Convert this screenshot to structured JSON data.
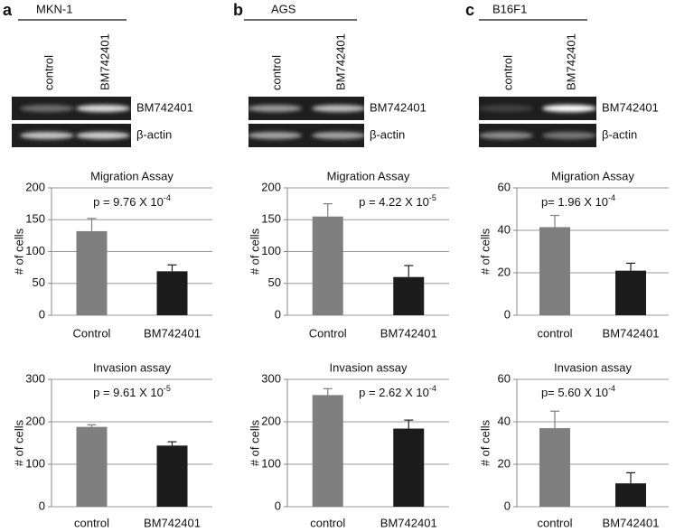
{
  "panels": [
    {
      "letter": "a",
      "cell_line": "MKN-1",
      "lanes": [
        "control",
        "BM742401"
      ],
      "bands": [
        "BM742401",
        "β-actin"
      ]
    },
    {
      "letter": "b",
      "cell_line": "AGS",
      "lanes": [
        "control",
        "BM742401"
      ],
      "bands": [
        "BM742401",
        "β-actin"
      ]
    },
    {
      "letter": "c",
      "cell_line": "B16F1",
      "lanes": [
        "control",
        "BM742401"
      ],
      "bands": [
        "BM742401",
        "β-actin"
      ]
    }
  ],
  "chart_data": [
    {
      "type": "bar",
      "title": "Migration Assay",
      "y_label": "# of cells",
      "annotation": "p = 9.76 X 10",
      "annotation_exponent": "-4",
      "categories": [
        "Control",
        "BM742401"
      ],
      "values": [
        132,
        69
      ],
      "errors": [
        20,
        10
      ],
      "colors": [
        "#7f7f7f",
        "#1c1c1c"
      ],
      "ylim": [
        0,
        200
      ],
      "yticks": [
        0,
        50,
        100,
        150,
        200
      ],
      "grid": true
    },
    {
      "type": "bar",
      "title": "Migration Assay",
      "y_label": "# of cells",
      "annotation": "p = 4.22 X 10",
      "annotation_exponent": "-5",
      "categories": [
        "Control",
        "BM742401"
      ],
      "values": [
        155,
        60
      ],
      "errors": [
        20,
        18
      ],
      "colors": [
        "#7f7f7f",
        "#1c1c1c"
      ],
      "ylim": [
        0,
        200
      ],
      "yticks": [
        0,
        50,
        100,
        150,
        200
      ],
      "grid": true
    },
    {
      "type": "bar",
      "title": "Migration Assay",
      "y_label": "# of cells",
      "annotation": "p= 1.96 X 10",
      "annotation_exponent": "-4",
      "categories": [
        "control",
        "BM742401"
      ],
      "values": [
        41.5,
        21
      ],
      "errors": [
        5.5,
        3.5
      ],
      "colors": [
        "#7f7f7f",
        "#1c1c1c"
      ],
      "ylim": [
        0,
        60
      ],
      "yticks": [
        0,
        20,
        40,
        60
      ],
      "grid": true
    },
    {
      "type": "bar",
      "title": "Invasion assay",
      "y_label": "# of cells",
      "annotation": "p = 9.61 X 10",
      "annotation_exponent": "-5",
      "categories": [
        "control",
        "BM742401"
      ],
      "values": [
        188,
        144
      ],
      "errors": [
        5,
        9
      ],
      "colors": [
        "#7f7f7f",
        "#1c1c1c"
      ],
      "ylim": [
        0,
        300
      ],
      "yticks": [
        0,
        100,
        200,
        300
      ],
      "grid": true
    },
    {
      "type": "bar",
      "title": "Invasion assay",
      "y_label": "# of cells",
      "annotation": "p = 2.62 X 10",
      "annotation_exponent": "-4",
      "categories": [
        "control",
        "BM742401"
      ],
      "values": [
        263,
        184
      ],
      "errors": [
        15,
        20
      ],
      "colors": [
        "#7f7f7f",
        "#1c1c1c"
      ],
      "ylim": [
        0,
        300
      ],
      "yticks": [
        0,
        100,
        200,
        300
      ],
      "grid": true
    },
    {
      "type": "bar",
      "title": "Invasion assay",
      "y_label": "# of cells",
      "annotation": "p= 5.60 X 10",
      "annotation_exponent": "-4",
      "categories": [
        "control",
        "BM742401"
      ],
      "values": [
        37,
        11
      ],
      "errors": [
        8,
        5
      ],
      "colors": [
        "#7f7f7f",
        "#1c1c1c"
      ],
      "ylim": [
        0,
        60
      ],
      "yticks": [
        0,
        20,
        40,
        60
      ],
      "grid": true
    }
  ]
}
